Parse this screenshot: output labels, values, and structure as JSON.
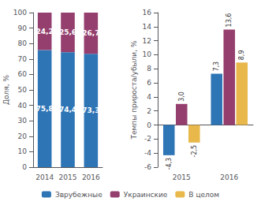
{
  "chart_data": [
    {
      "type": "bar",
      "categories": [
        "2014",
        "2015",
        "2016"
      ],
      "series": [
        {
          "name": "Зврубежные",
          "color": "#2e75b6",
          "values": [
            75.8,
            74.4,
            73.3
          ],
          "value_labels": [
            "75,8",
            "74,4",
            "73,3"
          ]
        },
        {
          "name": "Украинские",
          "color": "#943f6e",
          "values": [
            24.2,
            25.6,
            26.7
          ],
          "value_labels": [
            "24,2",
            "25,6",
            "26,7"
          ]
        }
      ],
      "stacked": true,
      "data_labels": true,
      "ylabel": "Доля, %",
      "ylim": [
        0,
        100
      ],
      "yticks": [
        0,
        10,
        20,
        30,
        40,
        50,
        60,
        70,
        80,
        90,
        100
      ],
      "grid": false
    },
    {
      "type": "bar",
      "categories": [
        "2015",
        "2016"
      ],
      "series": [
        {
          "name": "Зврубежные",
          "color": "#2e75b6",
          "values": [
            -4.3,
            7.3
          ],
          "value_labels": [
            "-4,3",
            "7,3"
          ]
        },
        {
          "name": "Украинские",
          "color": "#943f6e",
          "values": [
            3.0,
            13.6
          ],
          "value_labels": [
            "3,0",
            "13,6"
          ]
        },
        {
          "name": "В целом",
          "color": "#e8b84b",
          "values": [
            -2.5,
            8.9
          ],
          "value_labels": [
            "-2,5",
            "8,9"
          ]
        }
      ],
      "data_labels": true,
      "ylabel": "Темпы прироста/убыли, %",
      "ylim": [
        -6,
        16
      ],
      "yticks": [
        -6,
        -4,
        -2,
        0,
        2,
        4,
        6,
        8,
        10,
        12,
        14,
        16
      ],
      "grid": false,
      "legend": "bottom"
    }
  ]
}
